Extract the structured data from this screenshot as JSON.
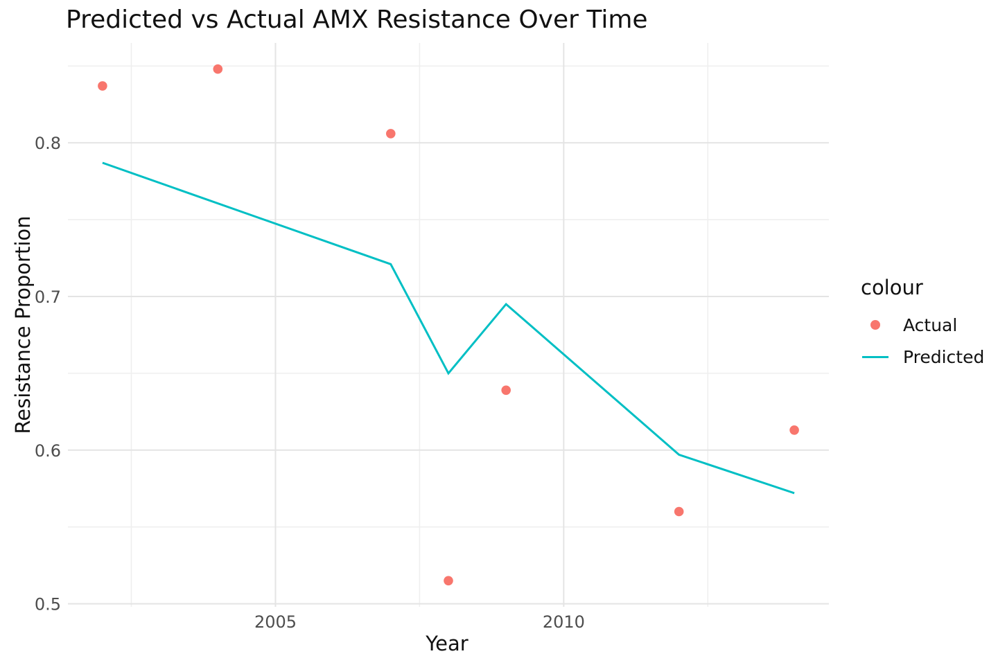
{
  "chart_data": {
    "type": "scatter+line",
    "title": "Predicted vs Actual AMX Resistance Over Time",
    "xlabel": "Year",
    "ylabel": "Resistance Proportion",
    "xlim": [
      2001.4,
      2014.6
    ],
    "ylim": [
      0.498,
      0.865
    ],
    "grid": "on",
    "x_ticks": {
      "values": [
        2005,
        2010
      ],
      "labels": [
        "2005",
        "2010"
      ]
    },
    "y_ticks": {
      "values": [
        0.5,
        0.6,
        0.7,
        0.8
      ],
      "labels": [
        "0.5",
        "0.6",
        "0.7",
        "0.8"
      ]
    },
    "minor_x": [
      2002.5,
      2007.5,
      2012.5
    ],
    "minor_y": [
      0.55,
      0.65,
      0.75,
      0.85
    ],
    "series": [
      {
        "name": "Actual",
        "type": "scatter",
        "color": "#F8766D",
        "x": [
          2002,
          2004,
          2007,
          2008,
          2009,
          2012,
          2014
        ],
        "y": [
          0.837,
          0.848,
          0.806,
          0.515,
          0.639,
          0.56,
          0.613
        ]
      },
      {
        "name": "Predicted",
        "type": "line",
        "color": "#00BFC4",
        "x": [
          2002,
          2007,
          2008,
          2009,
          2012,
          2014
        ],
        "y": [
          0.787,
          0.721,
          0.65,
          0.695,
          0.597,
          0.572
        ]
      }
    ],
    "legend": {
      "position": "right",
      "title": "colour",
      "entries": [
        {
          "label": "Actual",
          "marker": "point",
          "color": "#F8766D"
        },
        {
          "label": "Predicted",
          "marker": "line",
          "color": "#00BFC4"
        }
      ]
    },
    "colors": {
      "actual": "#F8766D",
      "predicted": "#00BFC4",
      "grid_major": "#e4e4e4",
      "grid_minor": "#efefef",
      "tick_text": "#4d4d4d",
      "title_text": "#111111"
    }
  }
}
